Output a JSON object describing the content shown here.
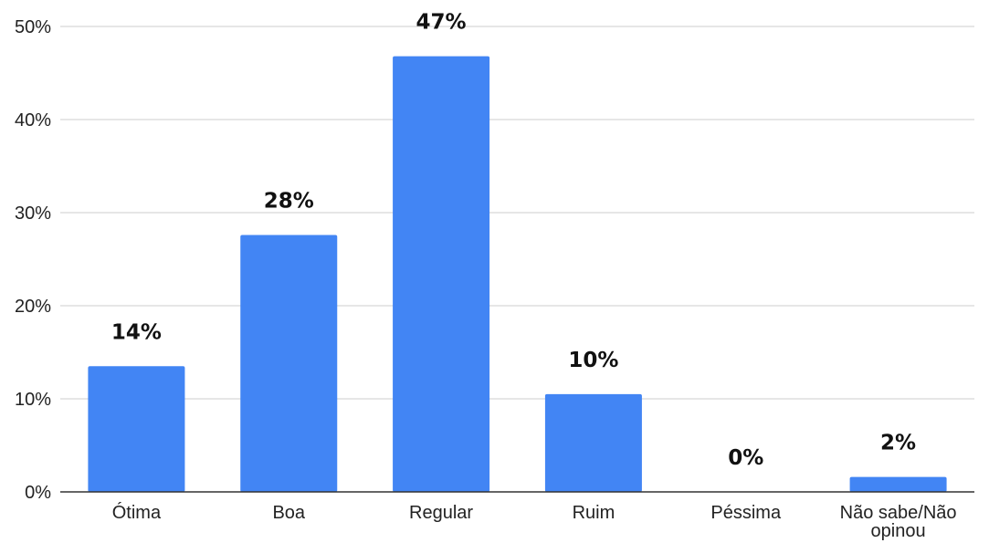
{
  "chart_data": {
    "type": "bar",
    "title": "",
    "xlabel": "",
    "ylabel": "",
    "categories": [
      "Ótima",
      "Boa",
      "Regular",
      "Ruim",
      "Péssima",
      "Não sabe/Não opinou"
    ],
    "category_label_lines": [
      [
        "Ótima"
      ],
      [
        "Boa"
      ],
      [
        "Regular"
      ],
      [
        "Ruim"
      ],
      [
        "Péssima"
      ],
      [
        "Não sabe/Não",
        "opinou"
      ]
    ],
    "values": [
      13.5,
      27.6,
      46.8,
      10.5,
      0,
      1.6
    ],
    "data_labels": [
      "14%",
      "28%",
      "47%",
      "10%",
      "0%",
      "2%"
    ],
    "ylim": [
      0,
      50
    ],
    "y_ticks": [
      0,
      10,
      20,
      30,
      40,
      50
    ],
    "y_tick_labels": [
      "0%",
      "10%",
      "20%",
      "30%",
      "40%",
      "50%"
    ],
    "grid": true,
    "legend": "none",
    "bar_color": "#4285f4"
  }
}
